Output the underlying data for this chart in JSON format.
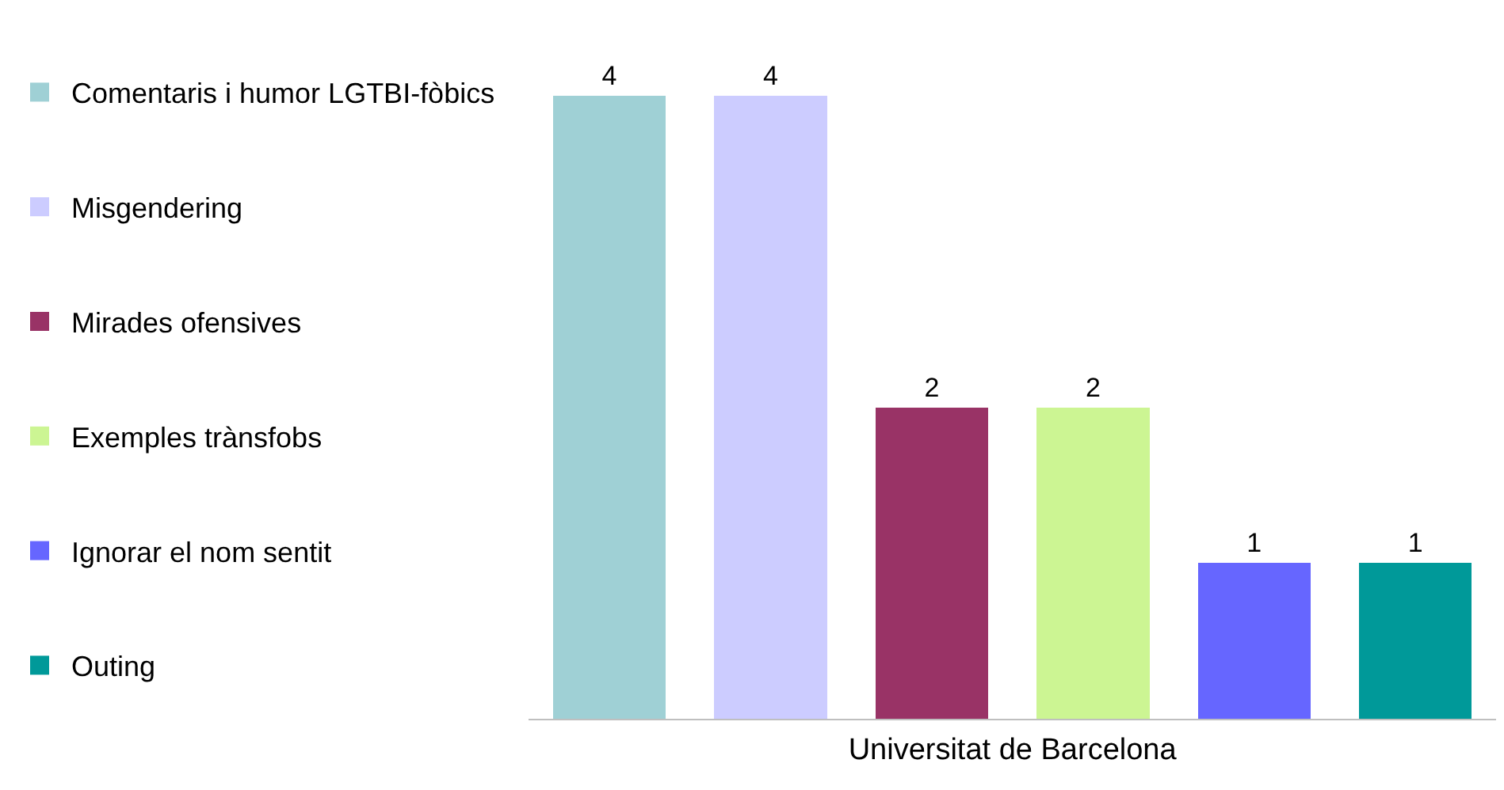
{
  "chart_data": {
    "type": "bar",
    "categories": [
      null,
      null,
      null,
      null,
      null,
      null
    ],
    "xlabel": "Universitat de Barcelona",
    "stacked": true,
    "series": [
      {
        "name": "Comentaris i humor LGTBI-fòbics",
        "color": "#9fd0d5",
        "values": [
          4,
          null,
          null,
          null,
          null,
          null
        ]
      },
      {
        "name": "Misgendering",
        "color": "#ccccff",
        "values": [
          null,
          4,
          null,
          null,
          null,
          null
        ]
      },
      {
        "name": "Mirades ofensives",
        "color": "#993366",
        "values": [
          null,
          null,
          2,
          null,
          null,
          null
        ]
      },
      {
        "name": "Exemples trànsfobs",
        "color": "#ccf593",
        "values": [
          null,
          null,
          null,
          2,
          null,
          null
        ]
      },
      {
        "name": "Ignorar el nom sentit",
        "color": "#6666ff",
        "values": [
          null,
          null,
          null,
          null,
          1,
          null
        ]
      },
      {
        "name": "Outing",
        "color": "#009999",
        "values": [
          null,
          null,
          null,
          null,
          null,
          1
        ]
      }
    ],
    "data_labels": true,
    "legend": "left"
  }
}
